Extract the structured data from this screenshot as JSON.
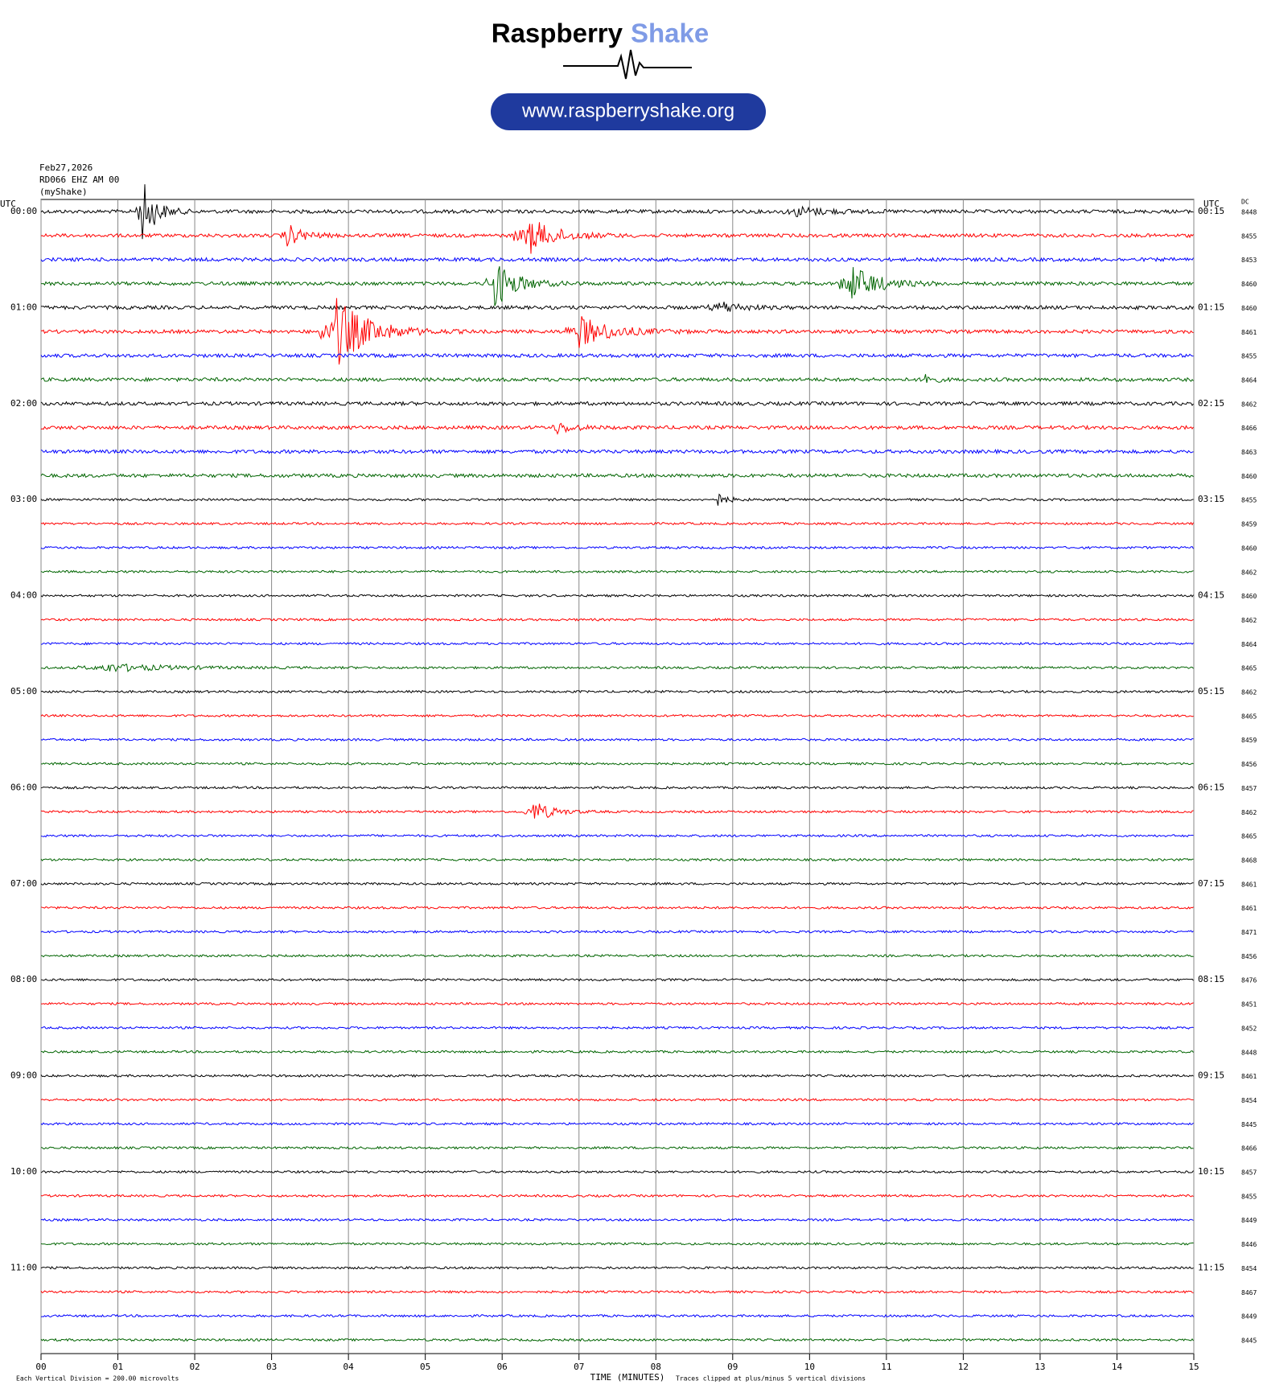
{
  "chart_data": {
    "type": "helicorder",
    "logo": {
      "word1": "Raspberry",
      "word2": "Shake",
      "url": "www.raspberryshake.org"
    },
    "date": "Feb27,2026",
    "station": "RD066 EHZ AM 00",
    "network": "(myShake)",
    "left_axis_title": "UTC",
    "right_axis_title": "UTC",
    "dc_title": "DC",
    "colors": [
      "#000000",
      "#ff0000",
      "#0000ff",
      "#006400"
    ],
    "hour_labels": [
      "00:00",
      "01:00",
      "02:00",
      "03:00",
      "04:00",
      "05:00",
      "06:00",
      "07:00",
      "08:00",
      "09:00",
      "10:00",
      "11:00"
    ],
    "quarter_labels": [
      "00:15",
      "01:15",
      "02:15",
      "03:15",
      "04:15",
      "05:15",
      "06:15",
      "07:15",
      "08:15",
      "09:15",
      "10:15",
      "11:15"
    ],
    "dc_values": [
      8448,
      8455,
      8453,
      8460,
      8460,
      8461,
      8455,
      8464,
      8462,
      8466,
      8463,
      8460,
      8455,
      8459,
      8460,
      8462,
      8460,
      8462,
      8464,
      8465,
      8462,
      8465,
      8459,
      8456,
      8457,
      8462,
      8465,
      8468,
      8461,
      8461,
      8471,
      8456,
      8476,
      8451,
      8452,
      8448,
      8461,
      8454,
      8445,
      8466,
      8457,
      8455,
      8449,
      8446,
      8454,
      8467,
      8449,
      8445
    ],
    "xlim": [
      0,
      15
    ],
    "xticks": [
      {
        "value": 0,
        "label": "00"
      },
      {
        "value": 1,
        "label": "01"
      },
      {
        "value": 2,
        "label": "02"
      },
      {
        "value": 3,
        "label": "03"
      },
      {
        "value": 4,
        "label": "04"
      },
      {
        "value": 5,
        "label": "05"
      },
      {
        "value": 6,
        "label": "06"
      },
      {
        "value": 7,
        "label": "07"
      },
      {
        "value": 8,
        "label": "08"
      },
      {
        "value": 9,
        "label": "09"
      },
      {
        "value": 10,
        "label": "10"
      },
      {
        "value": 11,
        "label": "11"
      },
      {
        "value": 12,
        "label": "12"
      },
      {
        "value": 13,
        "label": "13"
      },
      {
        "value": 14,
        "label": "14"
      },
      {
        "value": 15,
        "label": "15"
      }
    ],
    "xlabel": "TIME (MINUTES)",
    "scale_note": "Each Vertical Division =  200.00 microvolts",
    "clip_note": "Traces clipped at plus/minus 5 vertical divisions"
  }
}
